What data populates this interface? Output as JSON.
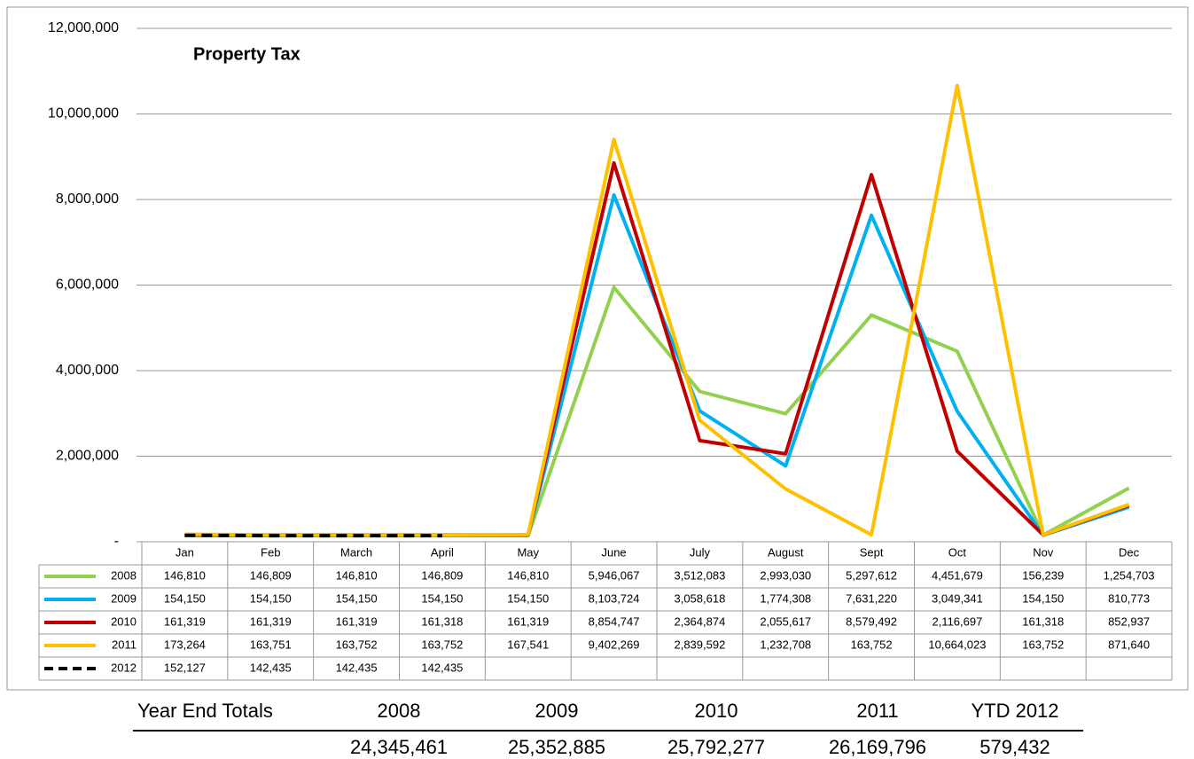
{
  "chart_data": {
    "type": "line",
    "title": "Property Tax",
    "categories": [
      "Jan",
      "Feb",
      "March",
      "April",
      "May",
      "June",
      "July",
      "August",
      "Sept",
      "Oct",
      "Nov",
      "Dec"
    ],
    "ylim": [
      0,
      12000000
    ],
    "yticks": [
      {
        "value": 0,
        "label": "-"
      },
      {
        "value": 2000000,
        "label": "2,000,000"
      },
      {
        "value": 4000000,
        "label": "4,000,000"
      },
      {
        "value": 6000000,
        "label": "6,000,000"
      },
      {
        "value": 8000000,
        "label": "8,000,000"
      },
      {
        "value": 10000000,
        "label": "10,000,000"
      },
      {
        "value": 12000000,
        "label": "12,000,000"
      }
    ],
    "grid": true,
    "series": [
      {
        "name": "2008",
        "color": "#92d050",
        "dashed": false,
        "values": [
          146810,
          146809,
          146810,
          146809,
          146810,
          5946067,
          3512083,
          2993030,
          5297612,
          4451679,
          156239,
          1254703
        ],
        "value_labels": [
          "146,810",
          "146,809",
          "146,810",
          "146,809",
          "146,810",
          "5,946,067",
          "3,512,083",
          "2,993,030",
          "5,297,612",
          "4,451,679",
          "156,239",
          "1,254,703"
        ]
      },
      {
        "name": "2009",
        "color": "#00b0f0",
        "dashed": false,
        "values": [
          154150,
          154150,
          154150,
          154150,
          154150,
          8103724,
          3058618,
          1774308,
          7631220,
          3049341,
          154150,
          810773
        ],
        "value_labels": [
          "154,150",
          "154,150",
          "154,150",
          "154,150",
          "154,150",
          "8,103,724",
          "3,058,618",
          "1,774,308",
          "7,631,220",
          "3,049,341",
          "154,150",
          "810,773"
        ]
      },
      {
        "name": "2010",
        "color": "#c00000",
        "dashed": false,
        "values": [
          161319,
          161319,
          161319,
          161318,
          161319,
          8854747,
          2364874,
          2055617,
          8579492,
          2116697,
          161318,
          852937
        ],
        "value_labels": [
          "161,319",
          "161,319",
          "161,319",
          "161,318",
          "161,319",
          "8,854,747",
          "2,364,874",
          "2,055,617",
          "8,579,492",
          "2,116,697",
          "161,318",
          "852,937"
        ]
      },
      {
        "name": "2011",
        "color": "#ffc000",
        "dashed": false,
        "values": [
          173264,
          163751,
          163752,
          163752,
          167541,
          9402269,
          2839592,
          1232708,
          163752,
          10664023,
          163752,
          871640
        ],
        "value_labels": [
          "173,264",
          "163,751",
          "163,752",
          "163,752",
          "167,541",
          "9,402,269",
          "2,839,592",
          "1,232,708",
          "163,752",
          "10,664,023",
          "163,752",
          "871,640"
        ]
      },
      {
        "name": "2012",
        "color": "#000000",
        "dashed": true,
        "values": [
          152127,
          142435,
          142435,
          142435,
          null,
          null,
          null,
          null,
          null,
          null,
          null,
          null
        ],
        "value_labels": [
          "152,127",
          "142,435",
          "142,435",
          "142,435",
          null,
          null,
          null,
          null,
          null,
          null,
          null,
          null
        ]
      }
    ]
  },
  "year_end_totals": {
    "title": "Year End Totals",
    "columns": [
      "2008",
      "2009",
      "2010",
      "2011",
      "YTD 2012"
    ],
    "totals": [
      "24,345,461",
      "25,352,885",
      "25,792,277",
      "26,169,796",
      "579,432"
    ]
  }
}
